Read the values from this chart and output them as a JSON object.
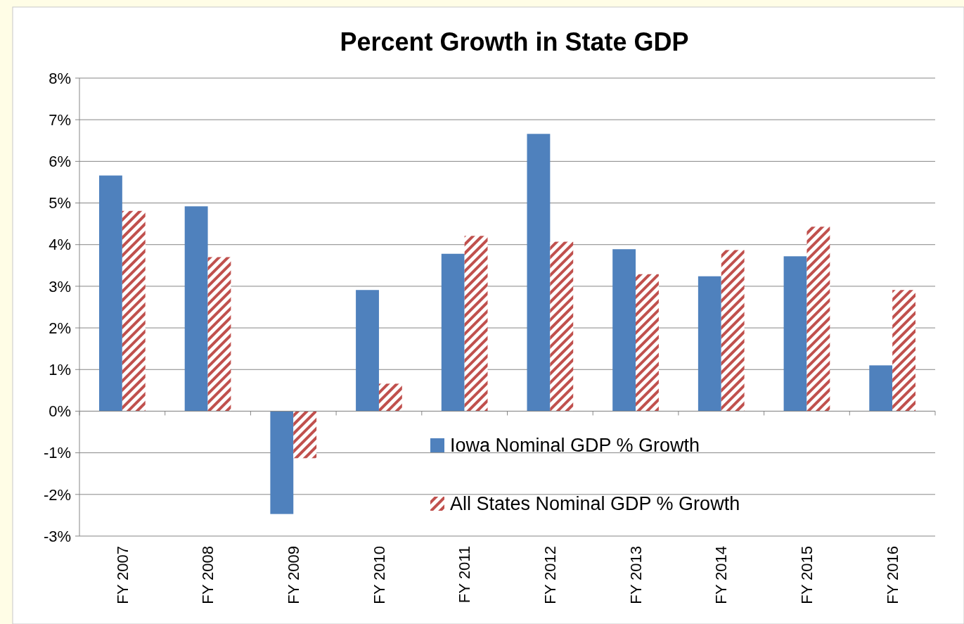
{
  "chart_data": {
    "type": "bar",
    "title": "Percent Growth in State GDP",
    "categories": [
      "FY 2007",
      "FY 2008",
      "FY 2009",
      "FY 2010",
      "FY 2011",
      "FY 2012",
      "FY 2013",
      "FY 2014",
      "FY 2015",
      "FY 2016"
    ],
    "series": [
      {
        "name": "Iowa Nominal GDP % Growth",
        "color": "#4f81bd",
        "values": [
          5.66,
          4.92,
          -2.47,
          2.91,
          3.78,
          6.66,
          3.89,
          3.24,
          3.72,
          1.1
        ]
      },
      {
        "name": "All States Nominal GDP % Growth",
        "color": "#c0504d",
        "values": [
          4.81,
          3.7,
          -1.13,
          0.66,
          4.21,
          4.07,
          3.29,
          3.87,
          4.43,
          2.91
        ]
      }
    ],
    "ylim": [
      -3,
      8
    ],
    "yticks": [
      {
        "value": -3,
        "label": "-3%"
      },
      {
        "value": -2,
        "label": "-2%"
      },
      {
        "value": -1,
        "label": "-1%"
      },
      {
        "value": 0,
        "label": "0%"
      },
      {
        "value": 1,
        "label": "1%"
      },
      {
        "value": 2,
        "label": "2%"
      },
      {
        "value": 3,
        "label": "3%"
      },
      {
        "value": 4,
        "label": "4%"
      },
      {
        "value": 5,
        "label": "5%"
      },
      {
        "value": 6,
        "label": "6%"
      },
      {
        "value": 7,
        "label": "7%"
      },
      {
        "value": 8,
        "label": "8%"
      }
    ],
    "grid": "y",
    "legend": "bottom right"
  }
}
